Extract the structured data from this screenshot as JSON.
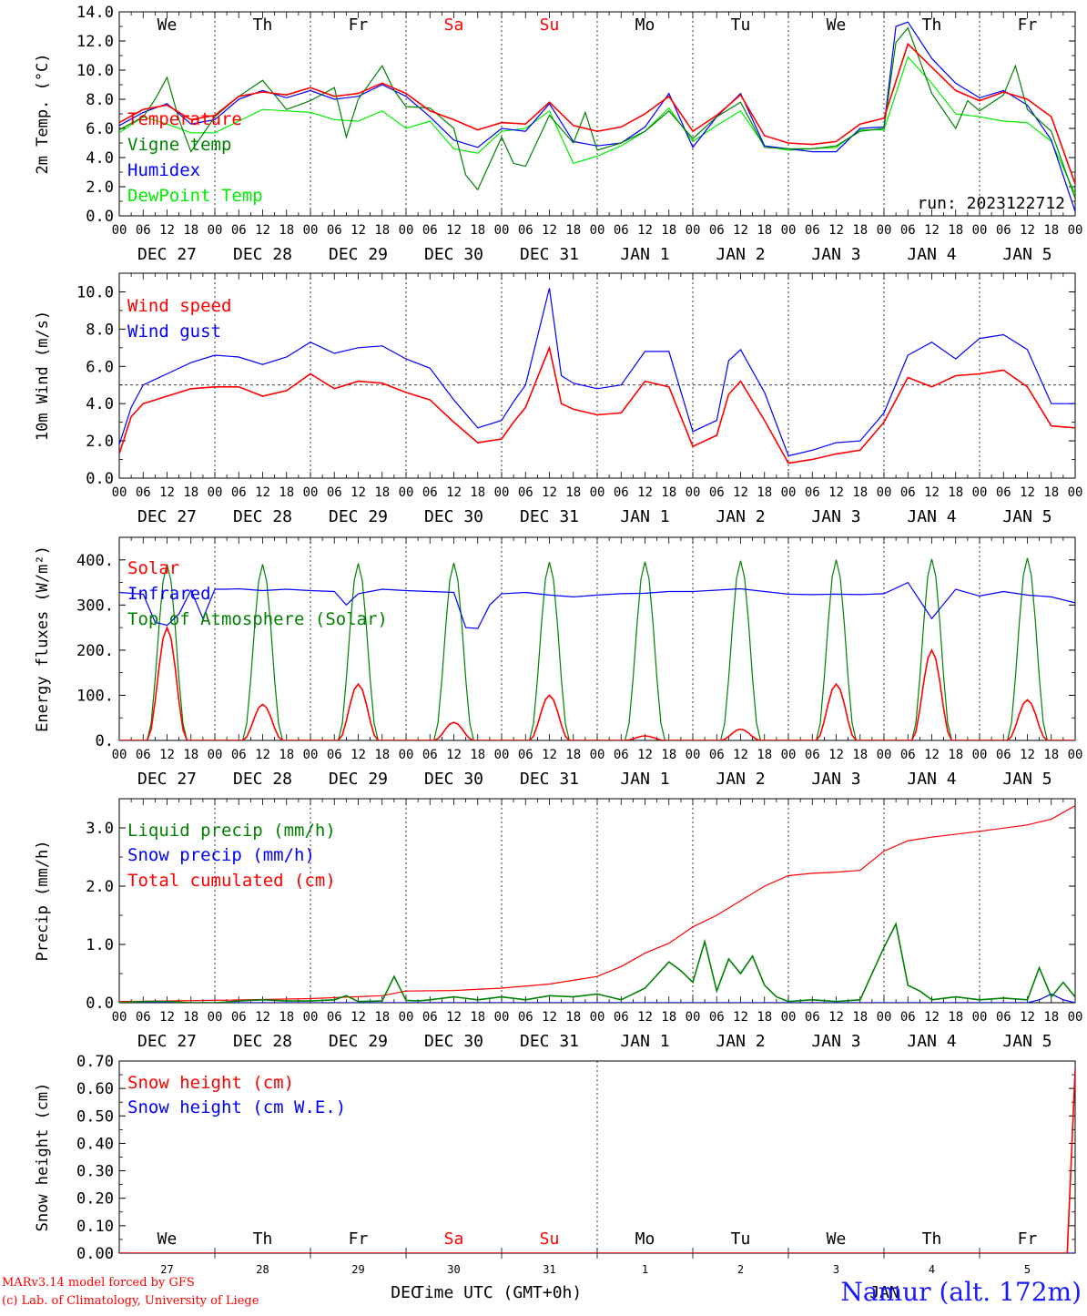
{
  "run_label": "run: 2023122712",
  "axis_time_label": "Time UTC (GMT+0h)",
  "month_label": "DEC",
  "month_label_2": "JAN",
  "station": "Namur (alt. 172m)",
  "credits": [
    "MARv3.14 model forced by GFS",
    "(c) Lab. of Climatology, University of Liege"
  ],
  "weekdays": [
    "We",
    "Th",
    "Fr",
    "Sa",
    "Su",
    "Mo",
    "Tu",
    "We",
    "Th",
    "Fr"
  ],
  "weekend_color": "#ff0000",
  "hour_ticks": [
    "00",
    "06",
    "12",
    "18"
  ],
  "dates": [
    "DEC 27",
    "DEC 28",
    "DEC 29",
    "DEC 30",
    "DEC 31",
    "JAN  1",
    "JAN  2",
    "JAN  3",
    "JAN  4",
    "JAN  5"
  ],
  "day_numbers": [
    "27",
    "28",
    "29",
    "30",
    "31",
    "1",
    "2",
    "3",
    "4",
    "5"
  ],
  "chart_data": [
    {
      "type": "line",
      "ylabel": "2m Temp. (°C)",
      "ylim": [
        0,
        14
      ],
      "yticks": [
        0,
        2,
        4,
        6,
        8,
        10,
        12,
        14
      ],
      "ytick_labels": [
        "0.0",
        "2.0",
        "4.0",
        "6.0",
        "8.0",
        "10.0",
        "12.0",
        "14.0"
      ],
      "x_unit": "hours since DEC 27 00 UTC",
      "xlim": [
        0,
        240
      ],
      "series": [
        {
          "name": "Temperature",
          "color": "#ff0000",
          "x": [
            0,
            6,
            12,
            18,
            24,
            30,
            36,
            42,
            48,
            54,
            60,
            66,
            72,
            78,
            84,
            90,
            96,
            102,
            108,
            114,
            120,
            126,
            132,
            138,
            144,
            150,
            156,
            162,
            168,
            174,
            180,
            186,
            192,
            198,
            204,
            210,
            216,
            222,
            228,
            234,
            240
          ],
          "y": [
            6.4,
            7.3,
            7.6,
            6.6,
            6.9,
            8.2,
            8.5,
            8.3,
            8.8,
            8.2,
            8.4,
            9.1,
            8.4,
            7.2,
            6.6,
            5.9,
            6.4,
            6.3,
            7.8,
            6.2,
            5.8,
            6.1,
            7.0,
            8.2,
            5.8,
            6.9,
            8.3,
            5.5,
            5.0,
            4.9,
            5.1,
            6.3,
            6.7,
            11.8,
            10.2,
            8.6,
            7.9,
            8.5,
            8.0,
            6.8,
            2.2
          ]
        },
        {
          "name": "Vigne temp",
          "color": "#008000",
          "x": [
            0,
            6,
            9,
            12,
            15,
            18,
            24,
            30,
            36,
            42,
            48,
            54,
            57,
            60,
            66,
            69,
            72,
            78,
            84,
            87,
            90,
            96,
            99,
            102,
            108,
            114,
            117,
            120,
            126,
            132,
            138,
            144,
            150,
            156,
            162,
            168,
            174,
            180,
            186,
            192,
            195,
            198,
            204,
            210,
            213,
            216,
            222,
            225,
            228,
            234,
            240
          ],
          "y": [
            5.9,
            6.8,
            8.0,
            9.5,
            6.6,
            4.4,
            6.8,
            8.2,
            9.3,
            7.3,
            7.9,
            8.8,
            5.4,
            8.0,
            10.3,
            8.6,
            7.5,
            7.4,
            6.0,
            2.8,
            1.8,
            5.4,
            3.6,
            3.4,
            6.9,
            5.0,
            7.1,
            4.5,
            5.0,
            5.8,
            7.2,
            5.3,
            6.8,
            7.8,
            4.7,
            4.6,
            4.6,
            4.8,
            5.8,
            6.0,
            11.9,
            12.9,
            8.4,
            6.0,
            7.9,
            7.2,
            8.3,
            10.3,
            7.3,
            5.8,
            1.2
          ]
        },
        {
          "name": "Humidex",
          "color": "#0000ff",
          "x": [
            0,
            6,
            12,
            18,
            24,
            30,
            36,
            42,
            48,
            54,
            60,
            66,
            72,
            78,
            84,
            90,
            96,
            102,
            108,
            114,
            120,
            126,
            132,
            138,
            144,
            150,
            156,
            162,
            168,
            174,
            180,
            186,
            192,
            195,
            198,
            204,
            210,
            216,
            222,
            228,
            234,
            240
          ],
          "y": [
            6.2,
            7.1,
            7.7,
            6.3,
            6.6,
            8.0,
            8.6,
            8.1,
            8.6,
            8.0,
            8.2,
            9.0,
            8.2,
            6.8,
            5.2,
            4.7,
            6.0,
            5.8,
            7.7,
            5.1,
            4.8,
            5.0,
            6.1,
            8.4,
            4.7,
            6.8,
            8.4,
            4.8,
            4.6,
            4.4,
            4.4,
            6.0,
            6.1,
            13.0,
            13.3,
            10.8,
            9.1,
            8.1,
            8.6,
            7.6,
            5.2,
            0.3
          ]
        },
        {
          "name": "DewPoint Temp",
          "color": "#00ee00",
          "x": [
            0,
            6,
            12,
            18,
            24,
            30,
            36,
            42,
            48,
            54,
            60,
            66,
            72,
            78,
            84,
            90,
            96,
            102,
            108,
            114,
            120,
            126,
            132,
            138,
            144,
            150,
            156,
            162,
            168,
            174,
            180,
            186,
            192,
            198,
            204,
            210,
            216,
            222,
            228,
            234,
            240
          ],
          "y": [
            5.7,
            6.8,
            6.3,
            5.7,
            5.7,
            6.5,
            7.3,
            7.2,
            7.1,
            6.6,
            6.5,
            7.2,
            6.0,
            6.5,
            4.6,
            4.3,
            5.8,
            6.0,
            7.2,
            3.6,
            4.1,
            4.8,
            5.8,
            7.4,
            5.1,
            6.2,
            7.2,
            4.8,
            4.5,
            4.6,
            4.7,
            5.9,
            5.9,
            10.9,
            9.1,
            7.0,
            6.8,
            6.5,
            6.4,
            5.1,
            1.5
          ]
        }
      ]
    },
    {
      "type": "line",
      "ylabel": "10m Wind (m/s)",
      "ylim": [
        0,
        11
      ],
      "yticks": [
        0,
        2,
        4,
        6,
        8,
        10
      ],
      "ytick_labels": [
        "0.0",
        "2.0",
        "4.0",
        "6.0",
        "8.0",
        "10.0"
      ],
      "reference_line": 5,
      "xlim": [
        0,
        240
      ],
      "series": [
        {
          "name": "Wind speed",
          "color": "#ff0000",
          "x": [
            0,
            3,
            6,
            9,
            12,
            18,
            24,
            30,
            36,
            42,
            48,
            54,
            60,
            66,
            72,
            78,
            84,
            90,
            96,
            99,
            102,
            108,
            111,
            114,
            120,
            126,
            132,
            138,
            144,
            150,
            153,
            156,
            162,
            168,
            174,
            180,
            186,
            192,
            198,
            204,
            210,
            216,
            222,
            228,
            234,
            240
          ],
          "y": [
            1.3,
            3.3,
            4.0,
            4.2,
            4.4,
            4.8,
            4.9,
            4.9,
            4.4,
            4.7,
            5.6,
            4.8,
            5.2,
            5.1,
            4.6,
            4.2,
            3.0,
            1.9,
            2.1,
            3.0,
            3.8,
            7.0,
            4.0,
            3.7,
            3.4,
            3.5,
            5.2,
            4.9,
            1.7,
            2.3,
            4.5,
            5.2,
            3.1,
            0.8,
            1.0,
            1.3,
            1.5,
            3.0,
            5.4,
            4.9,
            5.5,
            5.6,
            5.8,
            4.9,
            2.8,
            2.7
          ]
        },
        {
          "name": "Wind gust",
          "color": "#0000ff",
          "x": [
            0,
            3,
            6,
            9,
            12,
            18,
            24,
            30,
            36,
            42,
            48,
            54,
            60,
            66,
            72,
            78,
            84,
            90,
            96,
            99,
            102,
            108,
            111,
            114,
            120,
            126,
            132,
            138,
            144,
            150,
            153,
            156,
            162,
            168,
            174,
            180,
            186,
            192,
            198,
            204,
            210,
            216,
            222,
            228,
            234,
            240
          ],
          "y": [
            1.8,
            3.8,
            5.0,
            5.3,
            5.6,
            6.2,
            6.6,
            6.5,
            6.1,
            6.5,
            7.3,
            6.7,
            7.0,
            7.1,
            6.4,
            5.9,
            4.2,
            2.7,
            3.1,
            4.1,
            5.0,
            10.2,
            5.5,
            5.1,
            4.8,
            5.0,
            6.8,
            6.8,
            2.5,
            3.1,
            6.3,
            6.9,
            4.6,
            1.2,
            1.5,
            1.9,
            2.0,
            3.5,
            6.6,
            7.3,
            6.4,
            7.5,
            7.7,
            6.9,
            4.0,
            4.0
          ]
        }
      ]
    },
    {
      "type": "line",
      "ylabel": "Energy fluxes (W/m²)",
      "ylim": [
        0,
        450
      ],
      "yticks": [
        0,
        100,
        200,
        300,
        400
      ],
      "ytick_labels": [
        "0.",
        "100.",
        "200.",
        "300.",
        "400."
      ],
      "xlim": [
        0,
        240
      ],
      "series": [
        {
          "name": "Solar",
          "color": "#ff0000",
          "daily_peak_hour": 12,
          "daily_peak": [
            250,
            80,
            125,
            40,
            100,
            10,
            25,
            125,
            200,
            90
          ]
        },
        {
          "name": "Infrared",
          "color": "#0000ff",
          "x": [
            0,
            6,
            9,
            12,
            15,
            18,
            21,
            24,
            27,
            30,
            36,
            42,
            48,
            54,
            57,
            60,
            66,
            72,
            78,
            84,
            87,
            90,
            93,
            96,
            102,
            108,
            114,
            120,
            126,
            132,
            138,
            144,
            150,
            156,
            162,
            168,
            174,
            180,
            186,
            192,
            198,
            204,
            210,
            216,
            222,
            228,
            234,
            240
          ],
          "y": [
            328,
            324,
            262,
            255,
            280,
            333,
            270,
            335,
            335,
            336,
            332,
            335,
            332,
            330,
            300,
            325,
            335,
            332,
            330,
            328,
            250,
            248,
            300,
            325,
            328,
            322,
            318,
            322,
            325,
            326,
            330,
            330,
            333,
            336,
            330,
            324,
            323,
            324,
            323,
            325,
            350,
            270,
            335,
            320,
            330,
            322,
            318,
            305
          ]
        },
        {
          "name": "Top of Atmosphere (Solar)",
          "color": "#008000",
          "daily_peak_hour": 12,
          "daily_peak": [
            390,
            390,
            392,
            393,
            395,
            396,
            398,
            400,
            402,
            404
          ]
        }
      ]
    },
    {
      "type": "line",
      "ylabel": "Precip (mm/h)",
      "ylim": [
        0,
        3.5
      ],
      "yticks": [
        0,
        1,
        2,
        3
      ],
      "ytick_labels": [
        "0.0",
        "1.0",
        "2.0",
        "3.0"
      ],
      "xlim": [
        0,
        240
      ],
      "series": [
        {
          "name": "Liquid precip (mm/h)",
          "color": "#008000",
          "x": [
            0,
            6,
            12,
            18,
            24,
            30,
            36,
            42,
            48,
            54,
            57,
            60,
            66,
            69,
            72,
            75,
            78,
            84,
            90,
            96,
            102,
            108,
            114,
            120,
            126,
            132,
            138,
            141,
            144,
            147,
            150,
            153,
            156,
            159,
            162,
            165,
            168,
            174,
            180,
            186,
            192,
            195,
            198,
            201,
            204,
            210,
            216,
            222,
            228,
            231,
            234,
            237,
            240
          ],
          "y": [
            0,
            0.02,
            0.02,
            0,
            0,
            0.03,
            0.05,
            0.03,
            0.03,
            0.05,
            0.12,
            0.02,
            0.03,
            0.45,
            0.04,
            0.03,
            0.05,
            0.1,
            0.05,
            0.1,
            0.05,
            0.12,
            0.1,
            0.15,
            0.05,
            0.25,
            0.7,
            0.55,
            0.35,
            1.05,
            0.2,
            0.75,
            0.5,
            0.8,
            0.3,
            0.1,
            0.02,
            0.05,
            0.02,
            0.05,
            0.95,
            1.35,
            0.3,
            0.2,
            0.05,
            0.1,
            0.05,
            0.08,
            0.05,
            0.6,
            0.1,
            0.35,
            0.1
          ]
        },
        {
          "name": "Snow precip (mm/h)",
          "color": "#0000ff",
          "x": [
            0,
            228,
            231,
            234,
            237,
            240
          ],
          "y": [
            0,
            0,
            0.05,
            0.15,
            0.05,
            0
          ]
        },
        {
          "name": "Total cumulated (cm)",
          "color": "#ff0000",
          "x": [
            0,
            24,
            48,
            66,
            72,
            84,
            96,
            108,
            120,
            126,
            132,
            138,
            144,
            150,
            156,
            162,
            168,
            174,
            180,
            186,
            192,
            198,
            204,
            216,
            228,
            234,
            240
          ],
          "y": [
            0.02,
            0.04,
            0.07,
            0.12,
            0.2,
            0.21,
            0.25,
            0.32,
            0.45,
            0.62,
            0.85,
            1.02,
            1.3,
            1.5,
            1.75,
            2.0,
            2.18,
            2.22,
            2.24,
            2.27,
            2.6,
            2.78,
            2.84,
            2.94,
            3.05,
            3.15,
            3.38
          ]
        }
      ]
    },
    {
      "type": "line",
      "ylabel": "Snow height (cm)",
      "ylim": [
        0,
        0.7
      ],
      "yticks": [
        0,
        0.1,
        0.2,
        0.3,
        0.4,
        0.5,
        0.6,
        0.7
      ],
      "ytick_labels": [
        "0.00",
        "0.10",
        "0.20",
        "0.30",
        "0.40",
        "0.50",
        "0.60",
        "0.70"
      ],
      "xlim": [
        0,
        240
      ],
      "series": [
        {
          "name": "Snow height (cm)",
          "color": "#ff0000",
          "x": [
            0,
            238,
            240
          ],
          "y": [
            0,
            0,
            0.67
          ]
        },
        {
          "name": "Snow height (cm W.E.)",
          "color": "#0000ff",
          "x": [
            0,
            240
          ],
          "y": [
            0,
            0
          ]
        }
      ]
    }
  ]
}
